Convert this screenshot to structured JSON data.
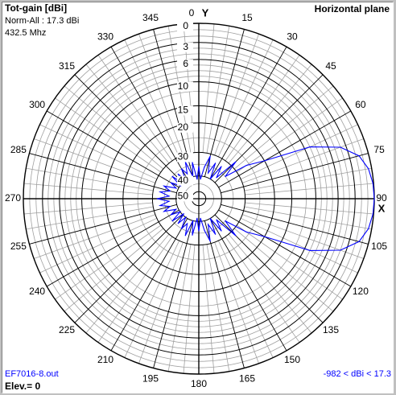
{
  "header": {
    "title": "Tot-gain [dBi]",
    "norm": "Norm-All : 17.3 dBi",
    "frequency": "432.5 Mhz",
    "plane": "Horizontal plane"
  },
  "footer": {
    "file": "EF7016-8.out",
    "range": "-982 < dBi < 17.3",
    "elevation": "Elev.= 0"
  },
  "colors": {
    "grid_major": "#000000",
    "grid_minor": "#a0a0a0",
    "pattern": "#0000ff",
    "footer_text": "#0000ff"
  },
  "chart_data": {
    "type": "polar",
    "title": "Tot-gain [dBi]",
    "plane": "Horizontal plane",
    "axis_label_top": "Y",
    "axis_label_right": "X",
    "angle_ticks": [
      "0",
      "15",
      "30",
      "45",
      "60",
      "75",
      "90",
      "105",
      "120",
      "135",
      "150",
      "165",
      "180",
      "195",
      "210",
      "225",
      "240",
      "255",
      "270",
      "285",
      "300",
      "315",
      "330",
      "345"
    ],
    "radial_ticks": [
      "0",
      "3",
      "6",
      "10",
      "15",
      "20",
      "30",
      "40",
      "50"
    ],
    "radial_range_db": [
      -50,
      0
    ],
    "grid_angle_step_deg": 5,
    "series": [
      {
        "points": [
          {
            "az": 0,
            "db": -36
          },
          {
            "az": 5,
            "db": -42
          },
          {
            "az": 10,
            "db": -36
          },
          {
            "az": 15,
            "db": -31
          },
          {
            "az": 20,
            "db": -38
          },
          {
            "az": 25,
            "db": -33
          },
          {
            "az": 30,
            "db": -40
          },
          {
            "az": 35,
            "db": -33
          },
          {
            "az": 40,
            "db": -38
          },
          {
            "az": 45,
            "db": -28
          },
          {
            "az": 50,
            "db": -35
          },
          {
            "az": 55,
            "db": -26
          },
          {
            "az": 60,
            "db": -20
          },
          {
            "az": 65,
            "db": -9
          },
          {
            "az": 70,
            "db": -4
          },
          {
            "az": 75,
            "db": -1.5
          },
          {
            "az": 80,
            "db": -0.5
          },
          {
            "az": 85,
            "db": -0.1
          },
          {
            "az": 90,
            "db": 0
          },
          {
            "az": 95,
            "db": -0.1
          },
          {
            "az": 100,
            "db": -0.5
          },
          {
            "az": 105,
            "db": -1.5
          },
          {
            "az": 110,
            "db": -4
          },
          {
            "az": 115,
            "db": -9
          },
          {
            "az": 120,
            "db": -20
          },
          {
            "az": 125,
            "db": -26
          },
          {
            "az": 130,
            "db": -35
          },
          {
            "az": 135,
            "db": -28
          },
          {
            "az": 140,
            "db": -38
          },
          {
            "az": 145,
            "db": -33
          },
          {
            "az": 150,
            "db": -40
          },
          {
            "az": 155,
            "db": -33
          },
          {
            "az": 160,
            "db": -38
          },
          {
            "az": 165,
            "db": -31
          },
          {
            "az": 170,
            "db": -36
          },
          {
            "az": 175,
            "db": -42
          },
          {
            "az": 180,
            "db": -36
          },
          {
            "az": 185,
            "db": -42
          },
          {
            "az": 190,
            "db": -34
          },
          {
            "az": 195,
            "db": -40
          },
          {
            "az": 200,
            "db": -33
          },
          {
            "az": 205,
            "db": -38
          },
          {
            "az": 210,
            "db": -35
          },
          {
            "az": 215,
            "db": -40
          },
          {
            "az": 220,
            "db": -36
          },
          {
            "az": 225,
            "db": -41
          },
          {
            "az": 230,
            "db": -35
          },
          {
            "az": 235,
            "db": -40
          },
          {
            "az": 240,
            "db": -36
          },
          {
            "az": 245,
            "db": -39
          },
          {
            "az": 250,
            "db": -34
          },
          {
            "az": 255,
            "db": -37
          },
          {
            "az": 260,
            "db": -33
          },
          {
            "az": 265,
            "db": -37
          },
          {
            "az": 270,
            "db": -32
          },
          {
            "az": 275,
            "db": -37
          },
          {
            "az": 280,
            "db": -33
          },
          {
            "az": 285,
            "db": -37
          },
          {
            "az": 290,
            "db": -34
          },
          {
            "az": 295,
            "db": -39
          },
          {
            "az": 300,
            "db": -36
          },
          {
            "az": 305,
            "db": -40
          },
          {
            "az": 310,
            "db": -35
          },
          {
            "az": 315,
            "db": -41
          },
          {
            "az": 320,
            "db": -36
          },
          {
            "az": 325,
            "db": -40
          },
          {
            "az": 330,
            "db": -35
          },
          {
            "az": 335,
            "db": -38
          },
          {
            "az": 340,
            "db": -33
          },
          {
            "az": 345,
            "db": -40
          },
          {
            "az": 350,
            "db": -34
          },
          {
            "az": 355,
            "db": -42
          }
        ]
      }
    ]
  }
}
